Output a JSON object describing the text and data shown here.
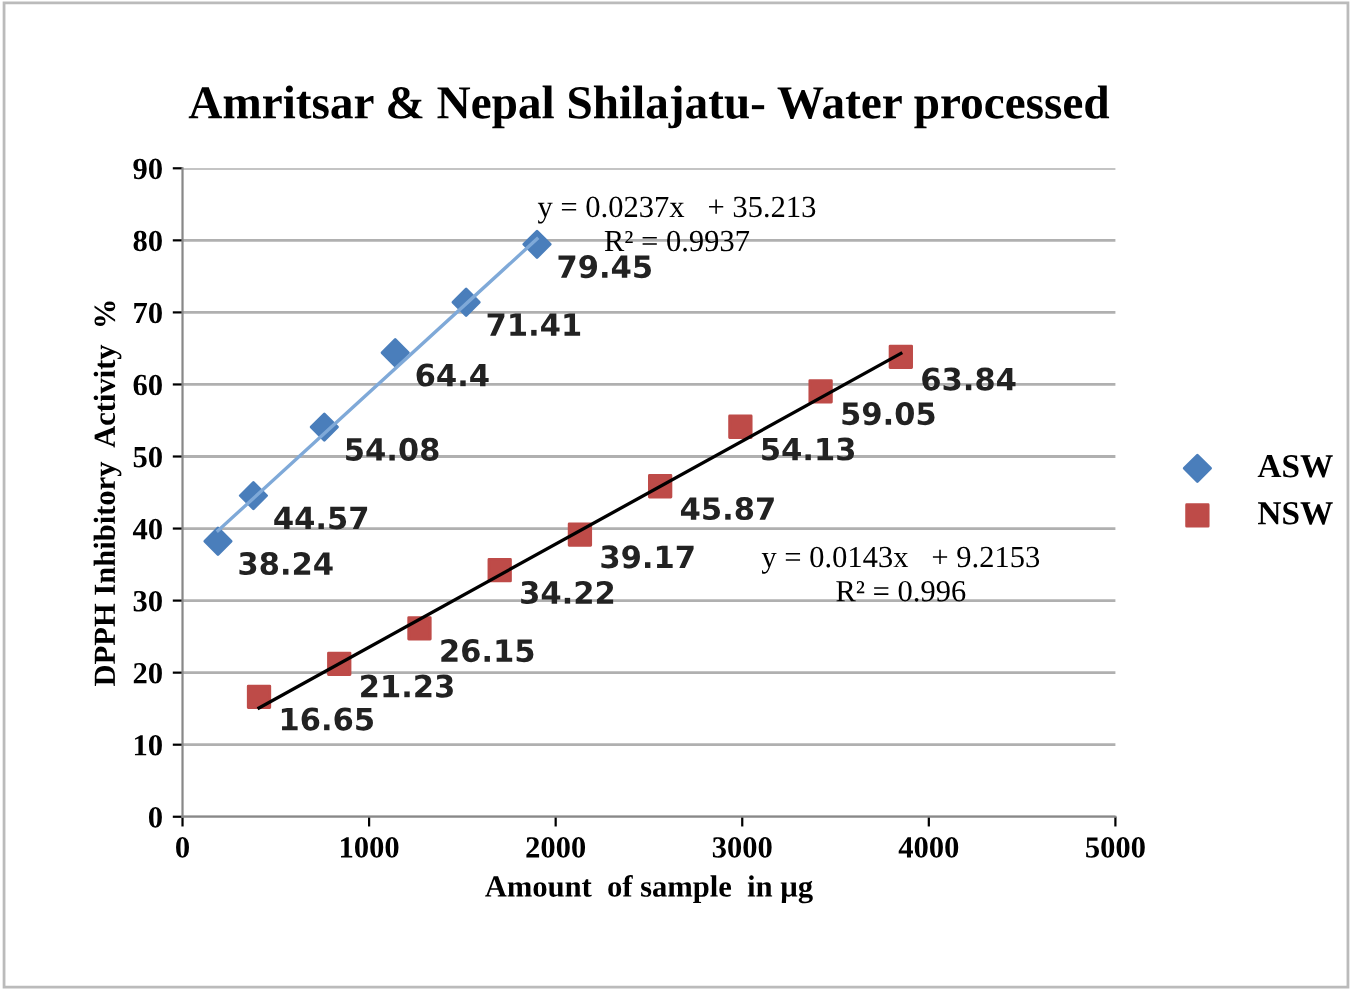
{
  "chart_data": {
    "type": "scatter",
    "title": "Amritsar & Nepal Shilajatu- Water processed",
    "xlabel": "Amount  of sample  in µg",
    "ylabel": "DPPH Inhibitory  Activity  %",
    "xlim": [
      0,
      5000
    ],
    "xticks": [
      0,
      1000,
      2000,
      3000,
      4000,
      5000
    ],
    "ylim": [
      0,
      90
    ],
    "yticks": [
      0,
      10,
      20,
      30,
      40,
      50,
      60,
      70,
      80,
      90
    ],
    "grid": "y",
    "legend": "right",
    "series": [
      {
        "name": "ASW",
        "color": "#4a7ebb",
        "marker": "diamond",
        "x": [
          190,
          380,
          760,
          1140,
          1520,
          1900
        ],
        "values": [
          38.24,
          44.57,
          54.08,
          64.4,
          71.41,
          79.45
        ],
        "value_labels": [
          "38.24",
          "44.57",
          "54.08",
          "64.4",
          "71.41",
          "79.45"
        ]
      },
      {
        "name": "NSW",
        "color": "#be4b48",
        "marker": "square",
        "x": [
          410,
          840,
          1270,
          1700,
          2130,
          2560,
          2990,
          3420,
          3850
        ],
        "values": [
          16.65,
          21.23,
          26.15,
          34.22,
          39.17,
          45.87,
          54.13,
          59.05,
          63.84
        ],
        "value_labels": [
          "16.65",
          "21.23",
          "26.15",
          "34.22",
          "39.17",
          "45.87",
          "54.13",
          "59.05",
          "63.84"
        ]
      },
      {
        "type": "line",
        "color": "#7fa9d8",
        "x": [
          190,
          1900
        ],
        "values": [
          39.7,
          80.2
        ]
      },
      {
        "type": "line",
        "color": "#000000",
        "x": [
          410,
          3850
        ],
        "values": [
          15.1,
          64.3
        ]
      }
    ],
    "annotations": [
      "y = 0.0237x   + 35.213\nR² = 0.9937",
      "y = 0.0143x   + 9.2153\nR² = 0.996"
    ]
  }
}
